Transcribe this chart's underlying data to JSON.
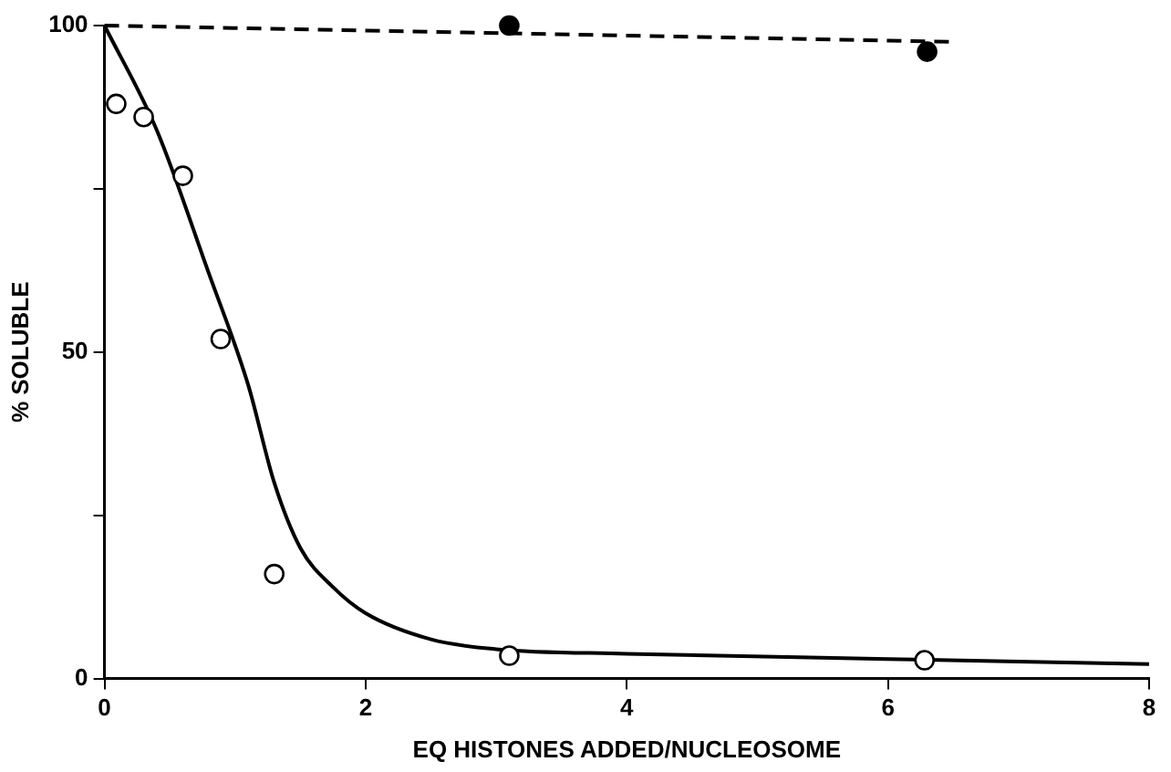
{
  "chart_data": {
    "type": "scatter",
    "xlabel": "EQ HISTONES ADDED/NUCLEOSOME",
    "ylabel": "% SOLUBLE",
    "xlim": [
      0,
      8
    ],
    "xticks": [
      0,
      2,
      4,
      6,
      8
    ],
    "ylim": [
      0,
      100
    ],
    "yticks": [
      0,
      {
        "value": 25,
        "label": null
      },
      50,
      {
        "value": 75,
        "label": null
      },
      100
    ],
    "grid": false,
    "legend": false,
    "series": [
      {
        "type": "line",
        "color": "#000000",
        "line_style": "solid",
        "marker": "none",
        "x": [
          0,
          0.4,
          0.8,
          1.1,
          1.3,
          1.5,
          1.75,
          2,
          2.5,
          3,
          4,
          6,
          8
        ],
        "values": [
          100,
          84,
          62,
          45,
          30,
          20,
          14,
          10,
          6,
          4.5,
          3.8,
          3,
          2.2
        ]
      },
      {
        "type": "line",
        "color": "#000000",
        "line_style": "dashed",
        "marker": "none",
        "x": [
          0,
          6.5
        ],
        "values": [
          100,
          97.5
        ]
      },
      {
        "color": "#ffffff",
        "marker": "circle",
        "x": [
          0.09,
          0.3,
          0.6,
          0.89,
          1.3,
          3.1,
          6.28
        ],
        "values": [
          88,
          86,
          77,
          52,
          16,
          3.5,
          2.8
        ]
      },
      {
        "color": "#000000",
        "marker": "circle",
        "x": [
          3.1,
          6.3
        ],
        "values": [
          100,
          96
        ]
      }
    ]
  }
}
